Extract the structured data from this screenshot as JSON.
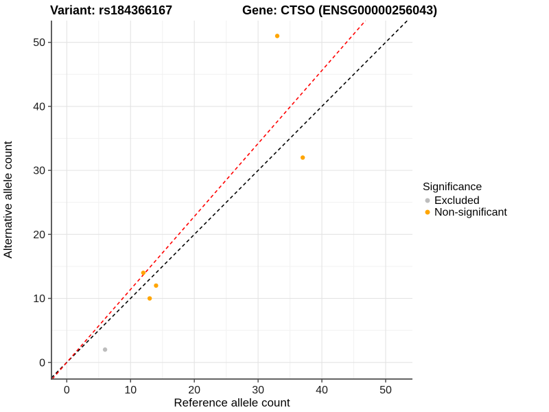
{
  "chart_data": {
    "type": "scatter",
    "titles": {
      "variant": "Variant: rs184366167",
      "gene": "Gene: CTSO (ENSG00000256043)"
    },
    "xlabel": "Reference allele count",
    "ylabel": "Alternative allele count",
    "xlim": [
      -2.4,
      54.2
    ],
    "ylim": [
      -2.6,
      53.4
    ],
    "x_ticks": [
      0,
      10,
      20,
      30,
      40,
      50
    ],
    "y_ticks": [
      0,
      10,
      20,
      30,
      40,
      50
    ],
    "x_minor_ticks": [
      5,
      15,
      25,
      35,
      45
    ],
    "y_minor_ticks": [
      5,
      15,
      25,
      35,
      45
    ],
    "grid": true,
    "legend_position": "right",
    "series": [
      {
        "name": "Excluded",
        "color": "#BDBDBD",
        "points": [
          [
            6,
            2
          ]
        ]
      },
      {
        "name": "Non-significant",
        "color": "#FFA500",
        "points": [
          [
            12,
            14
          ],
          [
            13,
            10
          ],
          [
            14,
            12
          ],
          [
            33,
            51
          ],
          [
            37,
            32
          ]
        ]
      }
    ],
    "lines": [
      {
        "name": "identity-line",
        "color": "#000000",
        "style": "dashed",
        "slope": 1,
        "intercept": 0
      },
      {
        "name": "expected-ratio-line",
        "color": "#FF0000",
        "style": "dashed",
        "slope": 1.14,
        "intercept": 0
      }
    ],
    "legend": {
      "title": "Significance",
      "items": [
        {
          "label": "Excluded",
          "color": "#BDBDBD"
        },
        {
          "label": "Non-significant",
          "color": "#FFA500"
        }
      ]
    }
  }
}
